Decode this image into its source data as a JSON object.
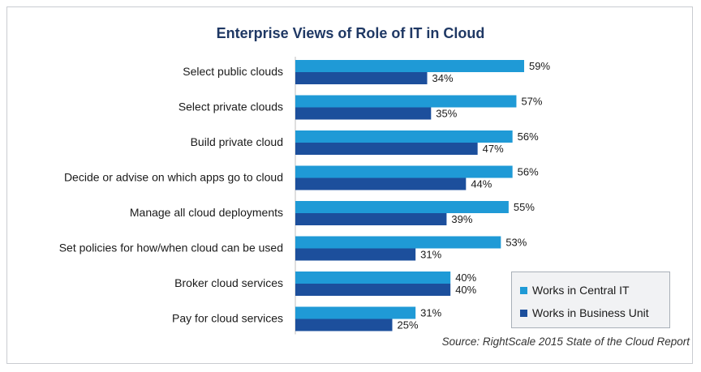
{
  "chart_data": {
    "type": "bar",
    "orientation": "horizontal",
    "title": "Enterprise Views of Role of IT in Cloud",
    "categories": [
      "Select public clouds",
      "Select private clouds",
      "Build private cloud",
      "Decide or advise on which apps go to cloud",
      "Manage all cloud deployments",
      "Set policies for how/when cloud can be used",
      "Broker cloud services",
      "Pay for cloud services"
    ],
    "series": [
      {
        "name": "Works in Central IT",
        "color": "#1f9ad6",
        "values": [
          59,
          57,
          56,
          56,
          55,
          53,
          40,
          31
        ]
      },
      {
        "name": "Works in Business Unit",
        "color": "#1c4f9c",
        "values": [
          34,
          35,
          47,
          44,
          39,
          31,
          40,
          25
        ]
      }
    ],
    "value_suffix": "%",
    "xlim": [
      0,
      100
    ],
    "grid": false,
    "legend_position": "bottom-right",
    "source": "Source: RightScale 2015 State of the Cloud Report"
  }
}
